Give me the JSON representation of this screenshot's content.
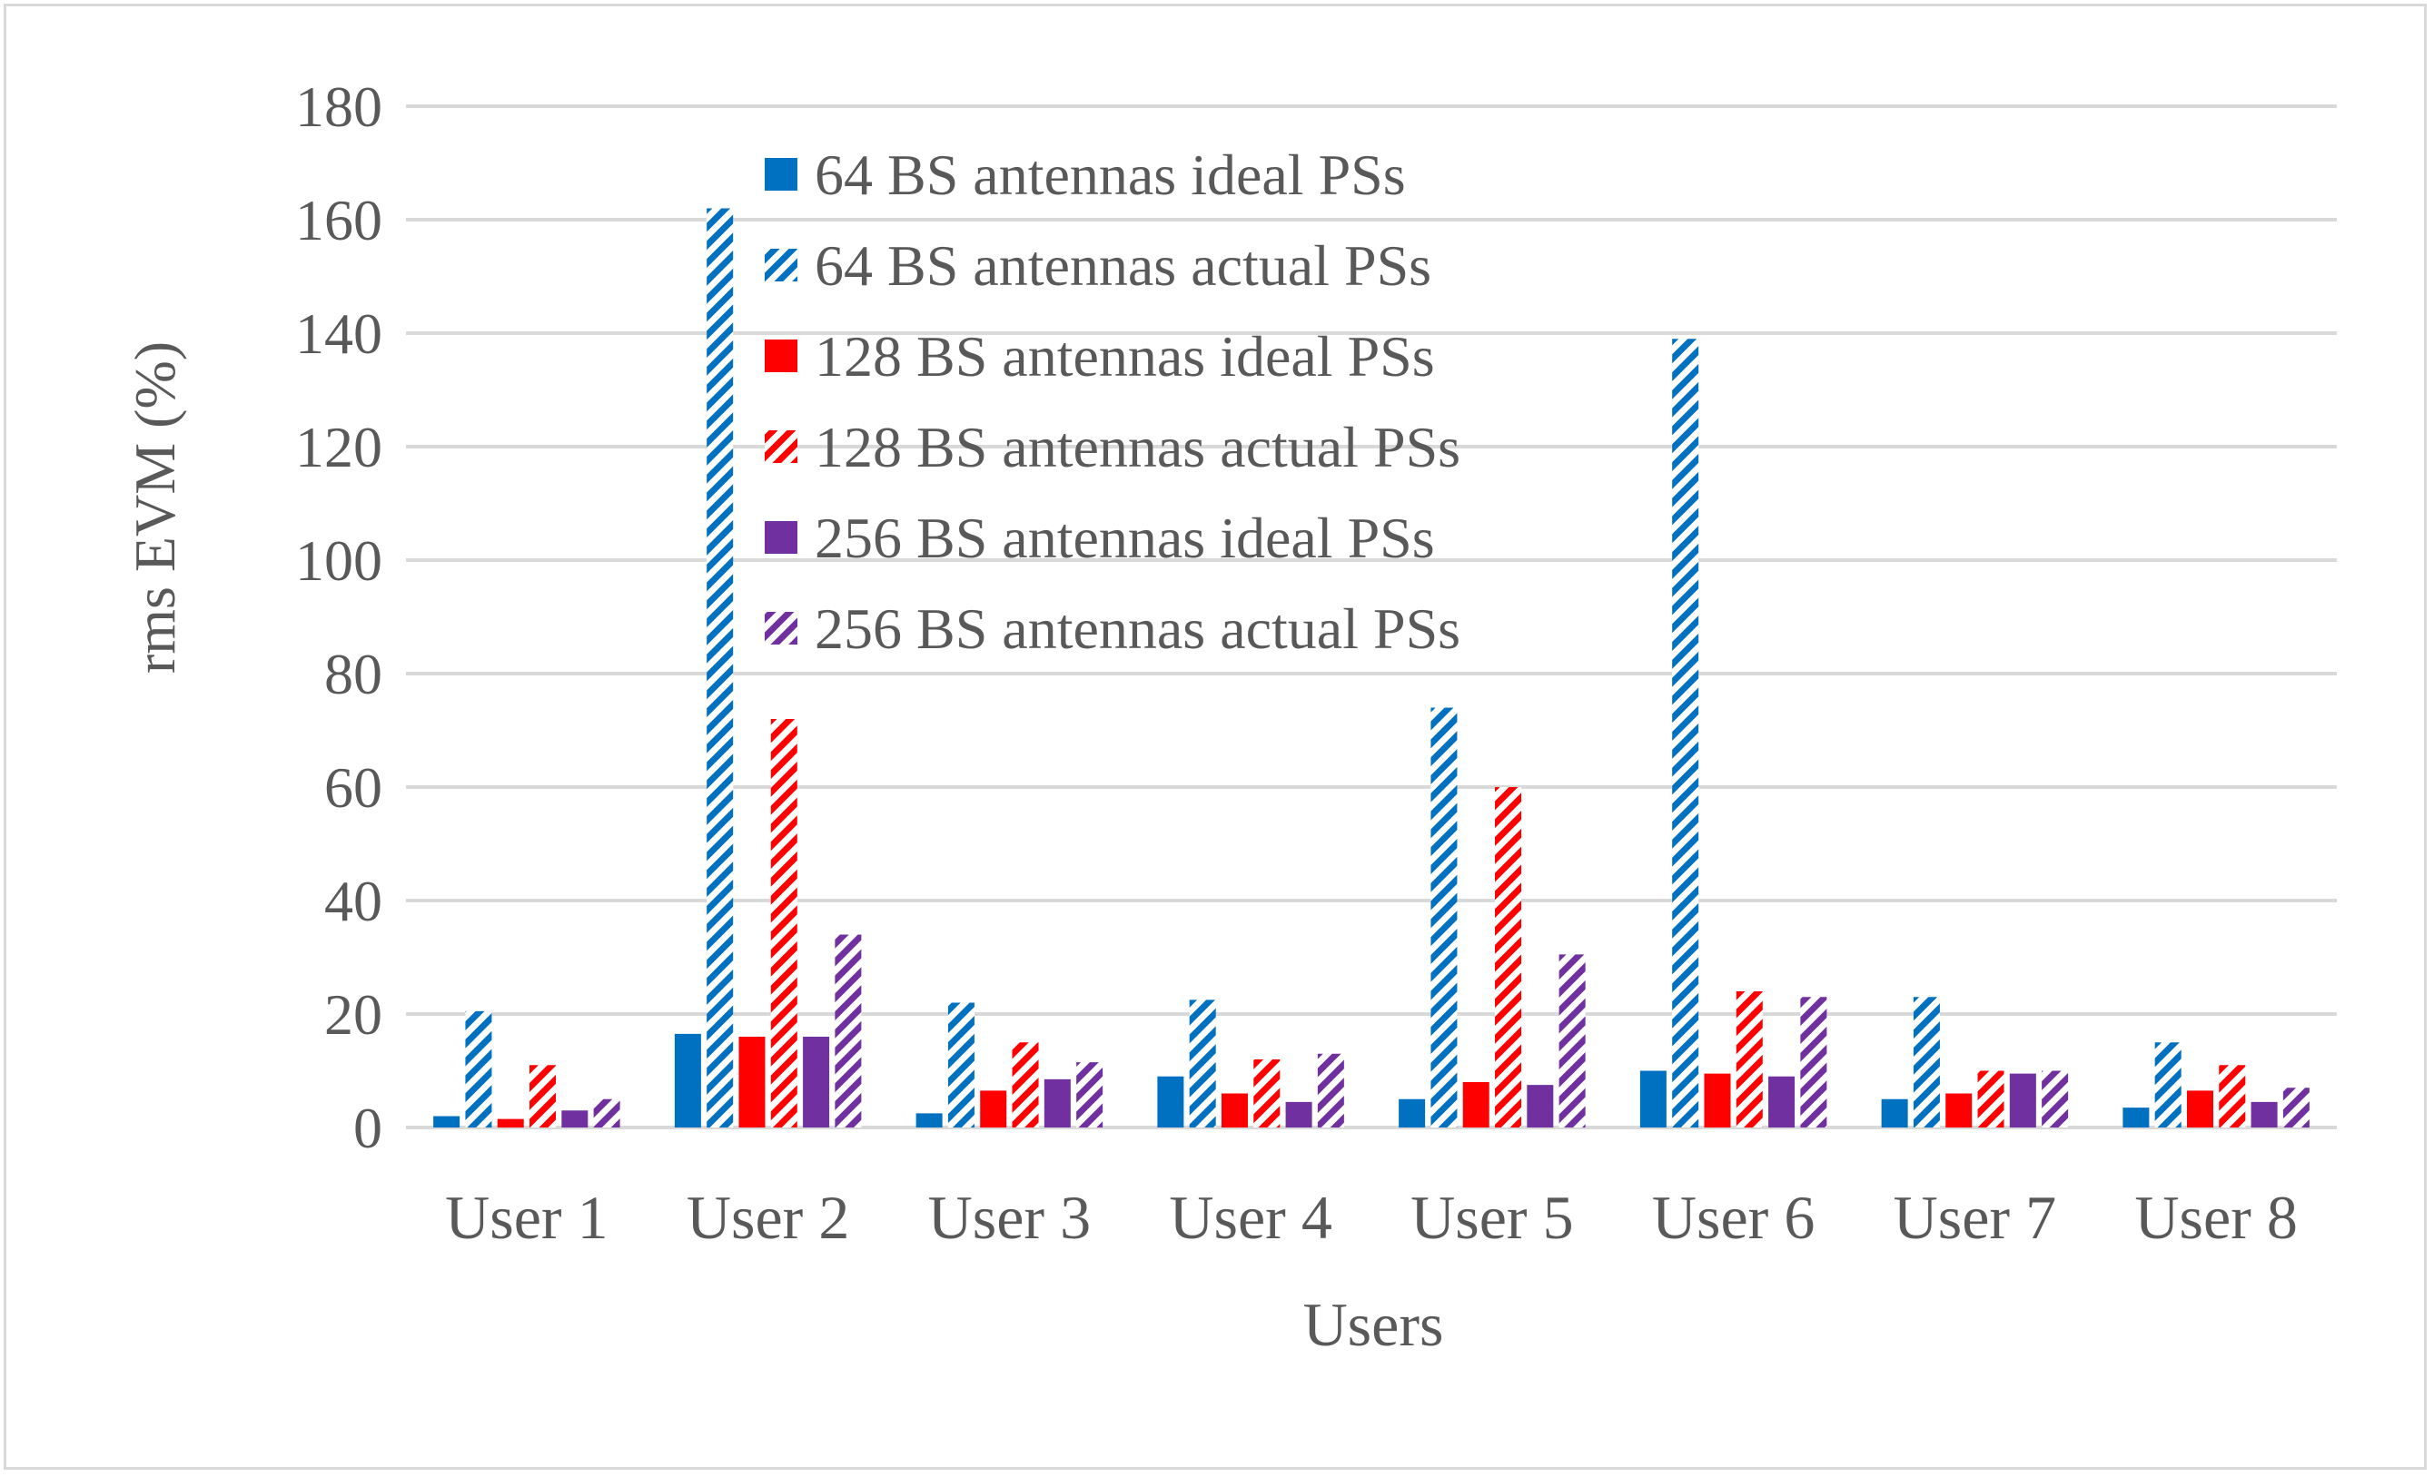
{
  "chart_data": {
    "type": "bar",
    "title": "",
    "xlabel": "Users",
    "ylabel": "rms EVM (%)",
    "ylim": [
      0,
      180
    ],
    "ytick_step": 20,
    "grid": true,
    "legend_position": "top-center",
    "categories": [
      "User 1",
      "User 2",
      "User 3",
      "User 4",
      "User 5",
      "User 6",
      "User 7",
      "User 8"
    ],
    "series": [
      {
        "name": "64 BS antennas ideal PSs",
        "color": "#0070c0",
        "pattern": "solid",
        "values": [
          2,
          16.5,
          2.5,
          9,
          5,
          10,
          5,
          3.5
        ]
      },
      {
        "name": "64 BS antennas actual PSs",
        "color": "#0070c0",
        "pattern": "hatched",
        "values": [
          20.5,
          162,
          22,
          22.5,
          74,
          139,
          23,
          15
        ]
      },
      {
        "name": "128 BS antennas ideal PSs",
        "color": "#ff0000",
        "pattern": "solid",
        "values": [
          1.5,
          16,
          6.5,
          6,
          8,
          9.5,
          6,
          6.5
        ]
      },
      {
        "name": "128 BS antennas actual PSs",
        "color": "#ff0000",
        "pattern": "hatched",
        "values": [
          11,
          72,
          15,
          12,
          60,
          24,
          10,
          11
        ]
      },
      {
        "name": "256 BS antennas ideal PSs",
        "color": "#7030a0",
        "pattern": "solid",
        "values": [
          3,
          16,
          8.5,
          4.5,
          7.5,
          9,
          9.5,
          4.5
        ]
      },
      {
        "name": "256 BS antennas actual PSs",
        "color": "#7030a0",
        "pattern": "hatched",
        "values": [
          5,
          34,
          11.5,
          13,
          30.5,
          23,
          10,
          7
        ]
      }
    ]
  }
}
